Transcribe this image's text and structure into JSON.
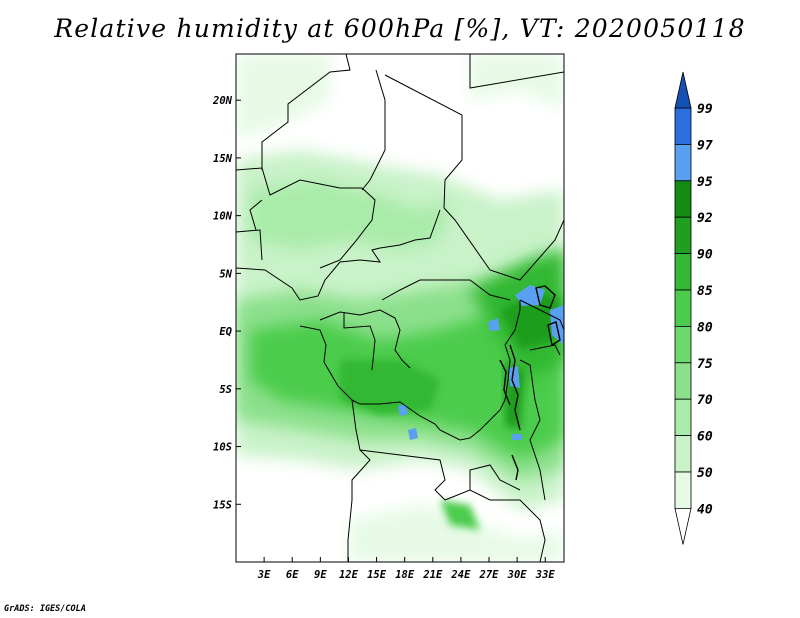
{
  "title": "Relative humidity at 600hPa [%], VT: 2020050118",
  "credit": "GrADS: IGES/COLA",
  "map": {
    "lon_range": [
      0,
      35
    ],
    "lat_range": [
      -20,
      24
    ],
    "lon_ticks": [
      "3E",
      "6E",
      "9E",
      "12E",
      "15E",
      "18E",
      "21E",
      "24E",
      "27E",
      "30E",
      "33E"
    ],
    "lon_tick_values": [
      3,
      6,
      9,
      12,
      15,
      18,
      21,
      24,
      27,
      30,
      33
    ],
    "lat_ticks": [
      "20N",
      "15N",
      "10N",
      "5N",
      "EQ",
      "5S",
      "10S",
      "15S"
    ],
    "lat_tick_values": [
      20,
      15,
      10,
      5,
      0,
      -5,
      -10,
      -15
    ]
  },
  "colorbar": {
    "levels": [
      "40",
      "50",
      "60",
      "70",
      "75",
      "80",
      "85",
      "90",
      "92",
      "95",
      "97",
      "99"
    ],
    "colors": [
      "#ffffff",
      "#e6fae6",
      "#c9f2c9",
      "#a9eba9",
      "#8ce08c",
      "#6cd96c",
      "#4ccc4c",
      "#32b832",
      "#1f9e1f",
      "#148c14",
      "#5aa0f0",
      "#2a6fdc",
      "#1450b4"
    ]
  }
}
